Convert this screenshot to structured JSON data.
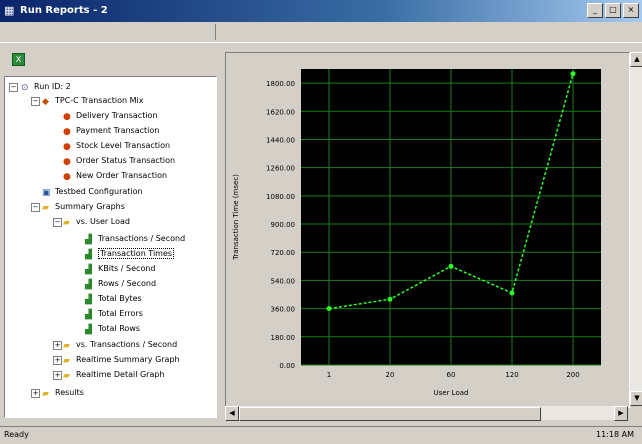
{
  "window": {
    "title": "Run Reports - 2"
  },
  "status": {
    "left": "Ready",
    "right": "11:18 AM"
  },
  "colors": {
    "title_start": "#0a246a",
    "title_end": "#a6caf0",
    "chart_bg": "#000000",
    "chart_grid": "#1e7d1e",
    "chart_line": "#2aff2a"
  },
  "tree": {
    "run": "Run ID: 2",
    "tx_mix": "TPC-C Transaction Mix",
    "tx_items": [
      "Delivery Transaction",
      "Payment Transaction",
      "Stock Level Transaction",
      "Order Status Transaction",
      "New Order Transaction"
    ],
    "testbed": "Testbed Configuration",
    "summary": "Summary Graphs",
    "vs_user": "vs. User Load",
    "vs_user_items": [
      "Transactions / Second",
      "Transaction Times",
      "KBits / Second",
      "Rows / Second",
      "Total Bytes",
      "Total Errors",
      "Total Rows"
    ],
    "vs_tps": "vs. Transactions / Second",
    "realtime_summary": "Realtime Summary Graph",
    "realtime_detail": "Realtime Detail Graph",
    "results": "Results"
  },
  "chart_data": {
    "type": "line",
    "x": [
      "1",
      "20",
      "60",
      "120",
      "200"
    ],
    "values": [
      360,
      420,
      630,
      460,
      1860
    ],
    "yticks": [
      "0.00",
      "180.00",
      "360.00",
      "540.00",
      "720.00",
      "900.00",
      "1080.00",
      "1260.00",
      "1440.00",
      "1620.00",
      "1800.00"
    ],
    "ylim": [
      0,
      1890
    ],
    "xlabel": "User Load",
    "ylabel": "Transaction Time (msec)",
    "grid": true
  }
}
